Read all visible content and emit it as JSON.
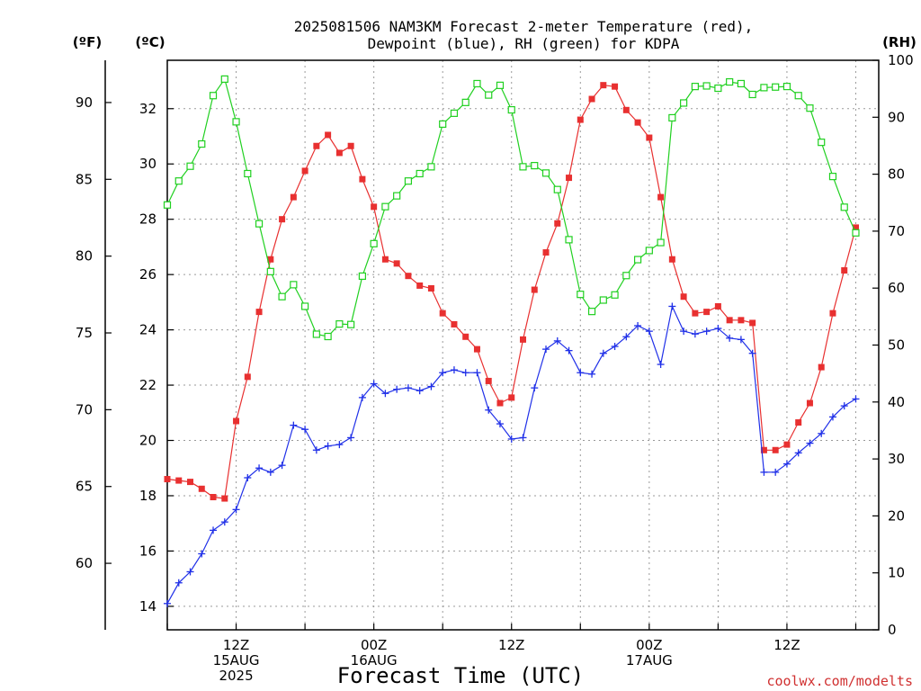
{
  "chart_data": {
    "type": "line",
    "title_line1": "2025081506 NAM3KM Forecast 2-meter Temperature (red),",
    "title_line2": "Dewpoint (blue), RH (green) for KDPA",
    "xlabel": "Forecast Time (UTC)",
    "credit": "coolwx.com/modelts",
    "unit_f": "(ºF)",
    "unit_c": "(ºC)",
    "unit_rh": "(RH)",
    "x_range_hours": [
      0,
      62
    ],
    "x_ticks": [
      {
        "hour": 6,
        "lines": [
          "12Z",
          "15AUG",
          "2025"
        ]
      },
      {
        "hour": 18,
        "lines": [
          "00Z",
          "16AUG"
        ]
      },
      {
        "hour": 30,
        "lines": [
          "12Z"
        ]
      },
      {
        "hour": 42,
        "lines": [
          "00Z",
          "17AUG"
        ]
      },
      {
        "hour": 54,
        "lines": [
          "12Z"
        ]
      }
    ],
    "y_celsius": {
      "range": [
        13.15,
        33.75
      ],
      "ticks": [
        14,
        16,
        18,
        20,
        22,
        24,
        26,
        28,
        30,
        32
      ]
    },
    "y_fahrenheit": {
      "ticks": [
        60,
        65,
        70,
        75,
        80,
        85,
        90
      ]
    },
    "y_rh": {
      "range": [
        0,
        100
      ],
      "ticks": [
        0,
        10,
        20,
        30,
        40,
        50,
        60,
        70,
        80,
        90,
        100
      ]
    },
    "grid": true,
    "colors": {
      "temperature": "#e83030",
      "dewpoint": "#2030e8",
      "rh": "#20d020"
    },
    "series": [
      {
        "key": "temperature",
        "values": [
          18.6,
          18.55,
          18.5,
          18.25,
          17.95,
          17.9,
          20.7,
          22.3,
          24.65,
          26.55,
          28.0,
          28.8,
          29.75,
          30.65,
          31.05,
          30.4,
          30.65,
          29.45,
          28.45,
          26.55,
          26.4,
          25.95,
          25.6,
          25.5,
          24.6,
          24.2,
          23.75,
          23.3,
          22.15,
          21.35,
          21.55,
          23.65,
          25.45,
          26.8,
          27.85,
          29.5,
          31.6,
          32.35,
          32.85,
          32.8,
          31.95,
          31.5,
          30.95,
          28.8,
          26.55,
          25.2,
          24.6,
          24.65,
          24.85,
          24.35,
          24.35,
          24.25,
          19.65,
          19.65,
          19.85,
          20.65,
          21.35,
          22.65,
          24.6,
          26.15,
          27.7
        ]
      },
      {
        "key": "dewpoint",
        "values": [
          14.1,
          14.85,
          15.25,
          15.9,
          16.75,
          17.05,
          17.5,
          18.65,
          19.0,
          18.85,
          19.1,
          20.55,
          20.4,
          19.65,
          19.8,
          19.85,
          20.1,
          21.55,
          22.05,
          21.7,
          21.85,
          21.9,
          21.8,
          21.95,
          22.45,
          22.55,
          22.45,
          22.45,
          21.1,
          20.6,
          20.05,
          20.1,
          21.9,
          23.3,
          23.6,
          23.25,
          22.45,
          22.4,
          23.15,
          23.4,
          23.75,
          24.15,
          23.95,
          22.75,
          24.85,
          23.95,
          23.85,
          23.95,
          24.05,
          23.7,
          23.65,
          23.15,
          18.85,
          18.85,
          19.15,
          19.55,
          19.9,
          20.25,
          20.85,
          21.25,
          21.5
        ]
      },
      {
        "key": "rh",
        "values": [
          74.6,
          78.8,
          81.4,
          85.3,
          93.8,
          96.7,
          89.2,
          80.1,
          71.3,
          62.9,
          58.5,
          60.6,
          56.8,
          51.9,
          51.5,
          53.7,
          53.6,
          62.1,
          67.8,
          74.3,
          76.2,
          78.8,
          80.1,
          81.3,
          88.8,
          90.7,
          92.6,
          95.9,
          93.9,
          95.6,
          91.3,
          81.3,
          81.5,
          80.2,
          77.3,
          68.5,
          58.9,
          55.9,
          57.9,
          58.8,
          62.2,
          65.0,
          66.6,
          68.0,
          89.9,
          92.5,
          95.4,
          95.5,
          95.1,
          96.2,
          95.9,
          94.0,
          95.2,
          95.3,
          95.4,
          93.8,
          91.6,
          85.6,
          79.6,
          74.2,
          69.7
        ]
      }
    ]
  }
}
